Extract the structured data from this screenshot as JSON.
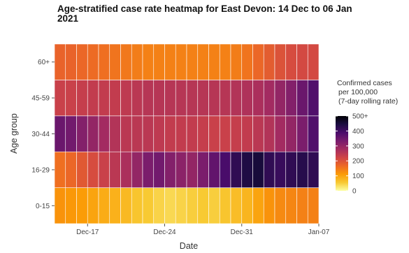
{
  "chart_data": {
    "type": "heatmap",
    "title_lines": [
      "Age-stratified case rate heatmap for East Devon: 14 Dec to 06 Jan",
      "2021"
    ],
    "xlabel": "Date",
    "ylabel": "Age group",
    "x_dates": [
      "2020-12-14",
      "2020-12-15",
      "2020-12-16",
      "2020-12-17",
      "2020-12-18",
      "2020-12-19",
      "2020-12-20",
      "2020-12-21",
      "2020-12-22",
      "2020-12-23",
      "2020-12-24",
      "2020-12-25",
      "2020-12-26",
      "2020-12-27",
      "2020-12-28",
      "2020-12-29",
      "2020-12-30",
      "2020-12-31",
      "2021-01-01",
      "2021-01-02",
      "2021-01-03",
      "2021-01-04",
      "2021-01-05",
      "2021-01-06"
    ],
    "x_ticks": [
      {
        "date": "2020-12-17",
        "label": "Dec-17"
      },
      {
        "date": "2020-12-24",
        "label": "Dec-24"
      },
      {
        "date": "2020-12-31",
        "label": "Dec-31"
      },
      {
        "date": "2021-01-07",
        "label": "Jan-07"
      }
    ],
    "x_range": [
      "2020-12-14",
      "2021-01-07"
    ],
    "y_categories": [
      "0-15",
      "16-29",
      "30-44",
      "45-59",
      "60+"
    ],
    "values": [
      [
        120,
        115,
        110,
        100,
        90,
        85,
        75,
        60,
        55,
        45,
        40,
        45,
        50,
        55,
        50,
        60,
        70,
        80,
        100,
        120,
        130,
        135,
        140,
        140
      ],
      [
        160,
        170,
        190,
        210,
        230,
        250,
        270,
        300,
        330,
        340,
        320,
        310,
        300,
        330,
        360,
        390,
        420,
        440,
        450,
        420,
        410,
        420,
        430,
        420
      ],
      [
        350,
        340,
        320,
        300,
        280,
        260,
        250,
        250,
        250,
        245,
        240,
        240,
        240,
        235,
        230,
        230,
        235,
        240,
        250,
        260,
        280,
        300,
        330,
        380
      ],
      [
        230,
        230,
        235,
        240,
        240,
        240,
        245,
        250,
        255,
        255,
        255,
        255,
        255,
        255,
        255,
        255,
        260,
        265,
        270,
        280,
        300,
        320,
        350,
        380
      ],
      [
        175,
        175,
        170,
        165,
        160,
        155,
        150,
        145,
        140,
        140,
        140,
        140,
        140,
        140,
        140,
        140,
        145,
        155,
        170,
        185,
        200,
        210,
        215,
        215
      ]
    ],
    "legend": {
      "title_lines": [
        "Confirmed cases",
        "per 100,000",
        "(7-day rolling rate)"
      ],
      "range": [
        0,
        500
      ],
      "ticks": [
        0,
        100,
        200,
        300,
        400,
        500
      ],
      "tick_labels": [
        "0",
        "100",
        "200",
        "300",
        "400",
        "500+"
      ]
    },
    "colormap": "inferno (reversed)",
    "colorstops": [
      "#fcffa4",
      "#f8c932",
      "#fb9b06",
      "#ed6925",
      "#cf4446",
      "#a52c60",
      "#781c6d",
      "#4a0c6b",
      "#1b0c41",
      "#000004"
    ],
    "panel_bg": "#ebebeb",
    "gridlines": true
  }
}
